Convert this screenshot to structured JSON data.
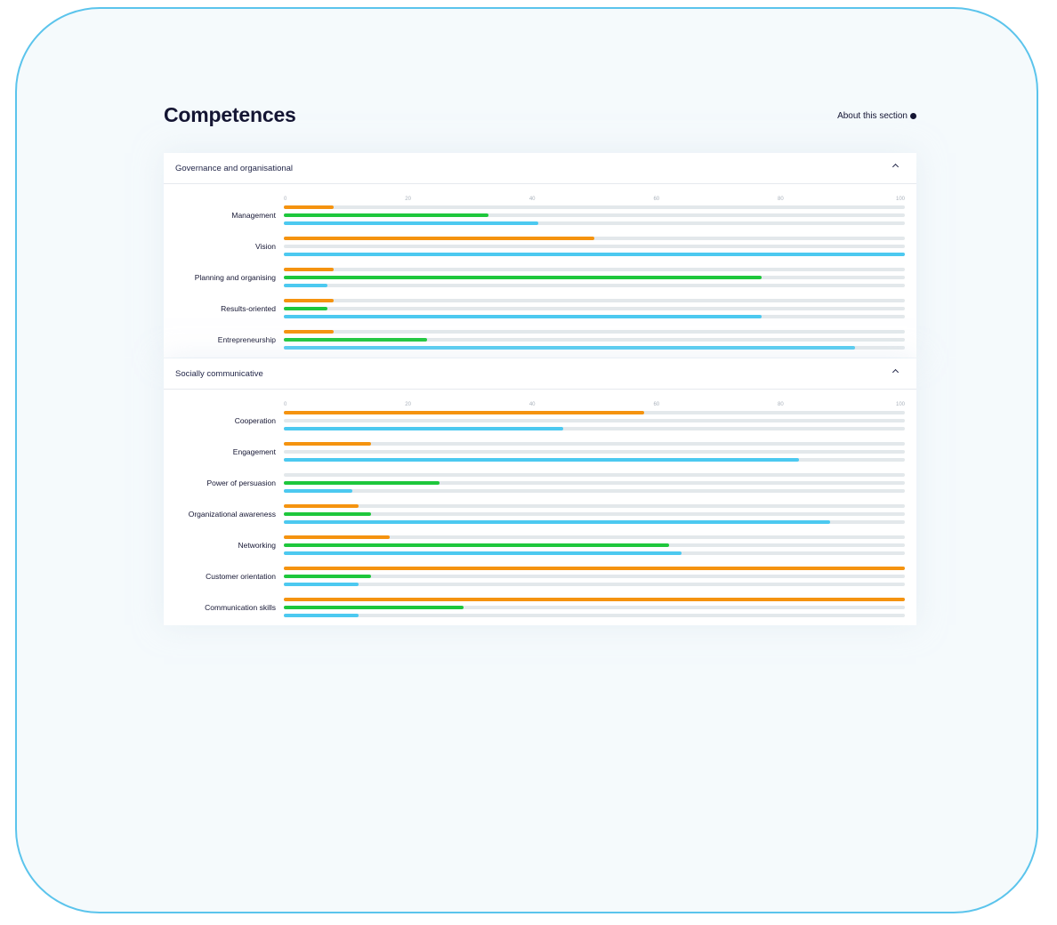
{
  "page_title": "Competences",
  "about_label": "About this section",
  "colors": {
    "orange": "#f5930f",
    "green": "#1ec73c",
    "blue": "#4cc9f0",
    "track": "#e3e8eb"
  },
  "chart_data": [
    {
      "type": "bar",
      "orientation": "horizontal",
      "section": "Governance and organisational",
      "axis_ticks": [
        "0",
        "20",
        "40",
        "60",
        "80",
        "100"
      ],
      "xlim": [
        0,
        100
      ],
      "categories": [
        "Management",
        "Vision",
        "Planning and organising",
        "Results-oriented",
        "Entrepreneurship"
      ],
      "series": [
        {
          "color": "orange",
          "values": [
            8,
            50,
            8,
            8,
            8
          ]
        },
        {
          "color": "green",
          "values": [
            33,
            0,
            77,
            7,
            23
          ]
        },
        {
          "color": "blue",
          "values": [
            41,
            100,
            7,
            77,
            92
          ]
        }
      ]
    },
    {
      "type": "bar",
      "orientation": "horizontal",
      "section": "Socially communicative",
      "axis_ticks": [
        "0",
        "20",
        "40",
        "60",
        "80",
        "100"
      ],
      "xlim": [
        0,
        100
      ],
      "categories": [
        "Cooperation",
        "Engagement",
        "Power of persuasion",
        "Organizational awareness",
        "Networking",
        "Customer orientation",
        "Communication skills"
      ],
      "series": [
        {
          "color": "orange",
          "values": [
            58,
            14,
            0,
            12,
            17,
            100,
            100
          ]
        },
        {
          "color": "green",
          "values": [
            0,
            0,
            25,
            14,
            62,
            14,
            29
          ]
        },
        {
          "color": "blue",
          "values": [
            45,
            83,
            11,
            88,
            64,
            12,
            12
          ]
        }
      ]
    }
  ]
}
